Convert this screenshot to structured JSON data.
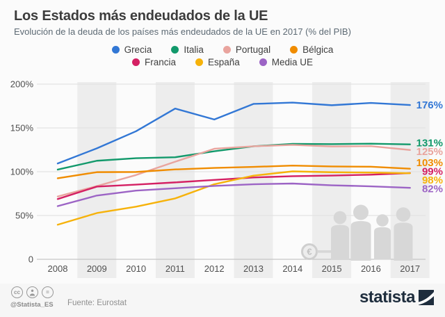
{
  "header": {
    "title": "Los Estados más endeudados de la UE",
    "subtitle": "Evolución de la deuda de los países más endeudados de la UE en 2017 (% del PIB)"
  },
  "chart_data": {
    "type": "line",
    "x": [
      "2008",
      "2009",
      "2010",
      "2011",
      "2012",
      "2013",
      "2014",
      "2015",
      "2016",
      "2017"
    ],
    "ylabel": "% del PIB",
    "ylim": [
      0,
      200
    ],
    "y_ticks": [
      {
        "value": 0,
        "label": "0"
      },
      {
        "value": 50,
        "label": "50%"
      },
      {
        "value": 100,
        "label": "100%"
      },
      {
        "value": 150,
        "label": "150%"
      },
      {
        "value": 200,
        "label": "200%"
      }
    ],
    "grid": "horizontal",
    "legend_position": "top",
    "series": [
      {
        "name": "Grecia",
        "color": "#3277d5",
        "end_label": "176%",
        "values": [
          109.4,
          126.7,
          146.2,
          172.1,
          159.6,
          177.4,
          178.9,
          175.9,
          178.5,
          176.1
        ]
      },
      {
        "name": "Italia",
        "color": "#12996b",
        "end_label": "131%",
        "values": [
          102.4,
          112.5,
          115.4,
          116.5,
          123.4,
          129.0,
          131.8,
          131.5,
          132.0,
          131.2
        ]
      },
      {
        "name": "Portugal",
        "color": "#e9a49e",
        "end_label": "125%",
        "values": [
          71.7,
          83.6,
          96.2,
          111.4,
          126.2,
          129.0,
          130.6,
          128.8,
          129.2,
          124.8
        ]
      },
      {
        "name": "Bélgica",
        "color": "#f08c00",
        "end_label": "103%",
        "values": [
          92.5,
          99.5,
          99.7,
          102.6,
          104.3,
          105.5,
          107.0,
          106.0,
          105.7,
          103.4
        ]
      },
      {
        "name": "Francia",
        "color": "#d42063",
        "end_label": "99%",
        "values": [
          68.8,
          83.0,
          85.3,
          87.8,
          90.6,
          93.4,
          94.9,
          95.6,
          96.6,
          98.5
        ]
      },
      {
        "name": "España",
        "color": "#f6b20a",
        "end_label": "98%",
        "values": [
          39.5,
          52.8,
          60.1,
          69.5,
          85.7,
          95.5,
          100.4,
          99.4,
          99.0,
          98.3
        ]
      },
      {
        "name": "Media UE",
        "color": "#9c64c5",
        "end_label": "82%",
        "values": [
          60.7,
          72.8,
          78.4,
          81.1,
          83.8,
          85.7,
          86.5,
          84.5,
          83.3,
          81.6
        ]
      }
    ]
  },
  "watermark": {
    "icons": [
      "euro-coin-icon",
      "people-silhouettes"
    ],
    "euro_symbol": "€"
  },
  "footer": {
    "license_icons": [
      "cc-icon",
      "attribution-person-icon",
      "equal-nd-icon"
    ],
    "cc_label": "cc",
    "nd_label": "=",
    "handle": "@Statista_ES",
    "source": "Fuente: Eurostat",
    "brand": "statista"
  }
}
